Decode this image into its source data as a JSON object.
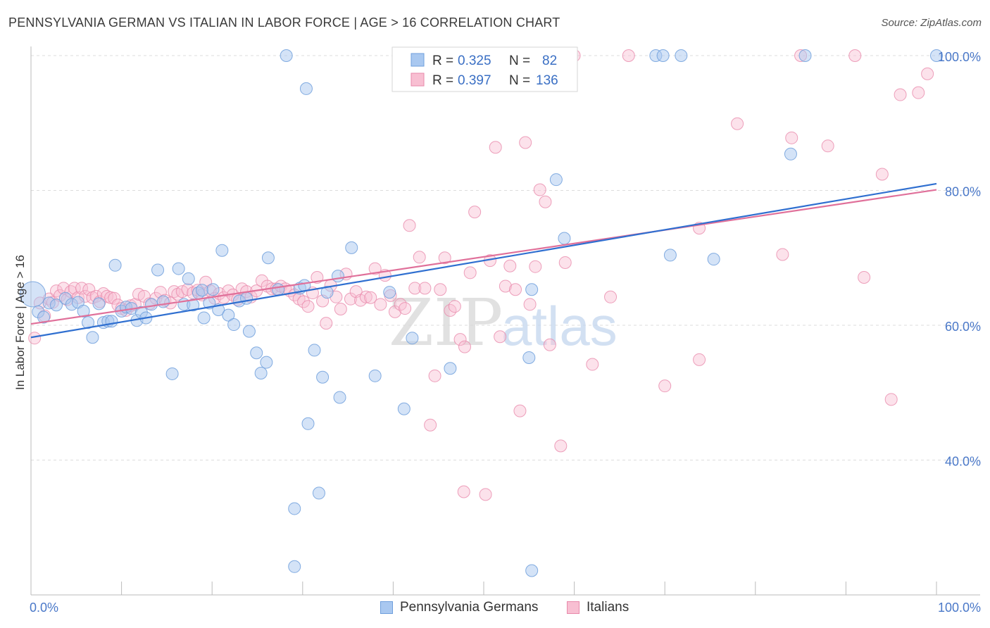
{
  "title": "PENNSYLVANIA GERMAN VS ITALIAN IN LABOR FORCE | AGE > 16 CORRELATION CHART",
  "source": "Source: ZipAtlas.com",
  "watermark": {
    "zip": "ZIP",
    "atlas": "atlas"
  },
  "colors": {
    "blue_fill": "#a9c8f0",
    "blue_stroke": "#6f9fdc",
    "blue_line": "#2f6fd0",
    "pink_fill": "#f8bfd2",
    "pink_stroke": "#e88aab",
    "pink_line": "#e0709a",
    "tick_label": "#4a78c8",
    "grid": "#dddddd",
    "axis": "#bbbbbb"
  },
  "legend_top": [
    {
      "r_label": "R =",
      "r_value": "0.325",
      "n_label": "N =",
      "n_value": "82"
    },
    {
      "r_label": "R =",
      "r_value": "0.397",
      "n_label": "N =",
      "n_value": "136"
    }
  ],
  "legend_bottom": [
    "Pennsylvania Germans",
    "Italians"
  ],
  "chart_data": {
    "type": "scatter",
    "title": "PENNSYLVANIA GERMAN VS ITALIAN IN LABOR FORCE | AGE > 16 CORRELATION CHART",
    "xlabel": "",
    "ylabel": "In Labor Force | Age > 16",
    "xlim": [
      0,
      100
    ],
    "ylim": [
      20,
      102
    ],
    "x_tick_labels": [
      "0.0%",
      "100.0%"
    ],
    "y_ticks": [
      40,
      60,
      80,
      100
    ],
    "y_tick_labels": [
      "40.0%",
      "60.0%",
      "80.0%",
      "100.0%"
    ],
    "grid": true,
    "series": [
      {
        "name": "Pennsylvania Germans",
        "color": "#a9c8f0",
        "trend": {
          "x": [
            0,
            100
          ],
          "y": [
            58.2,
            81.0
          ]
        },
        "points": [
          {
            "x": 0.2,
            "y": 64.6,
            "big": true
          },
          {
            "x": 0.8,
            "y": 62.0
          },
          {
            "x": 1.4,
            "y": 61.2
          },
          {
            "x": 2.0,
            "y": 63.3
          },
          {
            "x": 2.8,
            "y": 63.0
          },
          {
            "x": 3.8,
            "y": 64.0
          },
          {
            "x": 4.5,
            "y": 63.1
          },
          {
            "x": 5.2,
            "y": 63.4
          },
          {
            "x": 5.8,
            "y": 62.1
          },
          {
            "x": 6.3,
            "y": 60.4
          },
          {
            "x": 6.8,
            "y": 58.2
          },
          {
            "x": 7.5,
            "y": 63.2
          },
          {
            "x": 8.0,
            "y": 60.4
          },
          {
            "x": 8.5,
            "y": 60.6
          },
          {
            "x": 8.9,
            "y": 60.6
          },
          {
            "x": 9.3,
            "y": 68.9
          },
          {
            "x": 10.0,
            "y": 62.1
          },
          {
            "x": 10.5,
            "y": 62.7
          },
          {
            "x": 11.1,
            "y": 62.5
          },
          {
            "x": 11.7,
            "y": 60.7
          },
          {
            "x": 12.2,
            "y": 61.9
          },
          {
            "x": 12.7,
            "y": 61.1
          },
          {
            "x": 13.3,
            "y": 63.1
          },
          {
            "x": 14.0,
            "y": 68.2
          },
          {
            "x": 14.6,
            "y": 63.5
          },
          {
            "x": 15.6,
            "y": 52.8
          },
          {
            "x": 16.3,
            "y": 68.4
          },
          {
            "x": 16.9,
            "y": 63.1
          },
          {
            "x": 17.4,
            "y": 66.9
          },
          {
            "x": 17.9,
            "y": 63.0
          },
          {
            "x": 18.5,
            "y": 64.8
          },
          {
            "x": 18.9,
            "y": 65.2
          },
          {
            "x": 19.1,
            "y": 61.1
          },
          {
            "x": 19.7,
            "y": 63.3
          },
          {
            "x": 20.1,
            "y": 65.3
          },
          {
            "x": 20.7,
            "y": 62.3
          },
          {
            "x": 21.1,
            "y": 71.1
          },
          {
            "x": 21.8,
            "y": 61.5
          },
          {
            "x": 22.4,
            "y": 60.1
          },
          {
            "x": 23.0,
            "y": 63.6
          },
          {
            "x": 23.8,
            "y": 64.0
          },
          {
            "x": 24.1,
            "y": 59.1
          },
          {
            "x": 24.9,
            "y": 55.9
          },
          {
            "x": 25.4,
            "y": 52.9
          },
          {
            "x": 26.0,
            "y": 54.5
          },
          {
            "x": 26.2,
            "y": 70.0
          },
          {
            "x": 27.3,
            "y": 65.3
          },
          {
            "x": 28.2,
            "y": 100.0
          },
          {
            "x": 29.1,
            "y": 32.8
          },
          {
            "x": 29.1,
            "y": 24.2
          },
          {
            "x": 29.7,
            "y": 65.5
          },
          {
            "x": 30.2,
            "y": 65.9
          },
          {
            "x": 30.4,
            "y": 95.1
          },
          {
            "x": 30.6,
            "y": 45.4
          },
          {
            "x": 31.3,
            "y": 56.3
          },
          {
            "x": 31.8,
            "y": 35.1
          },
          {
            "x": 32.2,
            "y": 52.3
          },
          {
            "x": 32.7,
            "y": 64.9
          },
          {
            "x": 33.9,
            "y": 67.3
          },
          {
            "x": 34.1,
            "y": 49.3
          },
          {
            "x": 35.4,
            "y": 71.5
          },
          {
            "x": 38.0,
            "y": 52.5
          },
          {
            "x": 39.6,
            "y": 64.9
          },
          {
            "x": 41.2,
            "y": 47.6
          },
          {
            "x": 41.4,
            "y": 100.0
          },
          {
            "x": 42.1,
            "y": 58.1
          },
          {
            "x": 46.3,
            "y": 53.6
          },
          {
            "x": 47.0,
            "y": 95.9
          },
          {
            "x": 49.3,
            "y": 100.0
          },
          {
            "x": 55.0,
            "y": 55.2
          },
          {
            "x": 55.3,
            "y": 65.3
          },
          {
            "x": 55.3,
            "y": 23.6
          },
          {
            "x": 58.0,
            "y": 81.6
          },
          {
            "x": 58.9,
            "y": 72.9
          },
          {
            "x": 70.6,
            "y": 70.4
          },
          {
            "x": 69.0,
            "y": 100.0
          },
          {
            "x": 69.8,
            "y": 100.0
          },
          {
            "x": 71.8,
            "y": 100.0
          },
          {
            "x": 75.4,
            "y": 69.8
          },
          {
            "x": 83.9,
            "y": 85.4
          },
          {
            "x": 85.5,
            "y": 100.0
          },
          {
            "x": 100.0,
            "y": 100.0
          }
        ]
      },
      {
        "name": "Italians",
        "color": "#f8bfd2",
        "trend": {
          "x": [
            0,
            100
          ],
          "y": [
            60.2,
            80.1
          ]
        },
        "points": [
          {
            "x": 0.4,
            "y": 58.1
          },
          {
            "x": 1.0,
            "y": 63.3
          },
          {
            "x": 1.5,
            "y": 61.4
          },
          {
            "x": 2.0,
            "y": 63.9
          },
          {
            "x": 2.4,
            "y": 63.4
          },
          {
            "x": 2.8,
            "y": 65.1
          },
          {
            "x": 3.2,
            "y": 64.4
          },
          {
            "x": 3.6,
            "y": 65.5
          },
          {
            "x": 4.0,
            "y": 63.8
          },
          {
            "x": 4.4,
            "y": 65.0
          },
          {
            "x": 4.8,
            "y": 65.5
          },
          {
            "x": 5.2,
            "y": 64.1
          },
          {
            "x": 5.6,
            "y": 65.5
          },
          {
            "x": 6.0,
            "y": 64.3
          },
          {
            "x": 6.4,
            "y": 65.3
          },
          {
            "x": 6.8,
            "y": 64.1
          },
          {
            "x": 7.2,
            "y": 64.3
          },
          {
            "x": 7.6,
            "y": 63.5
          },
          {
            "x": 8.0,
            "y": 64.7
          },
          {
            "x": 8.4,
            "y": 64.3
          },
          {
            "x": 8.8,
            "y": 64.1
          },
          {
            "x": 9.2,
            "y": 64.0
          },
          {
            "x": 9.6,
            "y": 63.0
          },
          {
            "x": 10.0,
            "y": 62.5
          },
          {
            "x": 10.5,
            "y": 62.2
          },
          {
            "x": 11.0,
            "y": 62.9
          },
          {
            "x": 11.5,
            "y": 63.1
          },
          {
            "x": 11.9,
            "y": 64.6
          },
          {
            "x": 12.5,
            "y": 64.3
          },
          {
            "x": 13.1,
            "y": 63.2
          },
          {
            "x": 13.8,
            "y": 64.0
          },
          {
            "x": 14.3,
            "y": 64.9
          },
          {
            "x": 14.8,
            "y": 63.7
          },
          {
            "x": 15.4,
            "y": 63.3
          },
          {
            "x": 15.8,
            "y": 65.0
          },
          {
            "x": 16.2,
            "y": 64.6
          },
          {
            "x": 16.7,
            "y": 65.0
          },
          {
            "x": 17.3,
            "y": 65.3
          },
          {
            "x": 17.9,
            "y": 64.8
          },
          {
            "x": 18.4,
            "y": 65.2
          },
          {
            "x": 18.9,
            "y": 64.5
          },
          {
            "x": 19.3,
            "y": 66.4
          },
          {
            "x": 19.8,
            "y": 65.1
          },
          {
            "x": 20.3,
            "y": 64.0
          },
          {
            "x": 20.8,
            "y": 64.7
          },
          {
            "x": 21.3,
            "y": 64.1
          },
          {
            "x": 21.8,
            "y": 65.1
          },
          {
            "x": 22.3,
            "y": 64.5
          },
          {
            "x": 22.8,
            "y": 63.8
          },
          {
            "x": 23.3,
            "y": 65.4
          },
          {
            "x": 23.8,
            "y": 65.0
          },
          {
            "x": 24.3,
            "y": 64.2
          },
          {
            "x": 24.9,
            "y": 65.1
          },
          {
            "x": 25.5,
            "y": 66.6
          },
          {
            "x": 26.1,
            "y": 65.8
          },
          {
            "x": 26.6,
            "y": 65.4
          },
          {
            "x": 27.1,
            "y": 65.4
          },
          {
            "x": 27.6,
            "y": 65.8
          },
          {
            "x": 28.1,
            "y": 65.4
          },
          {
            "x": 28.6,
            "y": 65.1
          },
          {
            "x": 29.1,
            "y": 64.5
          },
          {
            "x": 29.6,
            "y": 63.9
          },
          {
            "x": 30.1,
            "y": 63.5
          },
          {
            "x": 30.6,
            "y": 62.8
          },
          {
            "x": 31.1,
            "y": 64.8
          },
          {
            "x": 31.6,
            "y": 67.1
          },
          {
            "x": 32.2,
            "y": 63.6
          },
          {
            "x": 32.6,
            "y": 60.3
          },
          {
            "x": 33.1,
            "y": 65.9
          },
          {
            "x": 33.7,
            "y": 64.2
          },
          {
            "x": 34.2,
            "y": 62.4
          },
          {
            "x": 34.8,
            "y": 67.6
          },
          {
            "x": 35.3,
            "y": 63.9
          },
          {
            "x": 35.9,
            "y": 65.0
          },
          {
            "x": 36.4,
            "y": 63.7
          },
          {
            "x": 37.0,
            "y": 64.2
          },
          {
            "x": 37.5,
            "y": 64.1
          },
          {
            "x": 38.0,
            "y": 68.4
          },
          {
            "x": 38.6,
            "y": 63.1
          },
          {
            "x": 39.1,
            "y": 67.4
          },
          {
            "x": 39.7,
            "y": 64.4
          },
          {
            "x": 40.2,
            "y": 62.0
          },
          {
            "x": 40.8,
            "y": 63.1
          },
          {
            "x": 41.3,
            "y": 62.5
          },
          {
            "x": 41.8,
            "y": 74.8
          },
          {
            "x": 42.4,
            "y": 65.5
          },
          {
            "x": 42.9,
            "y": 70.1
          },
          {
            "x": 43.5,
            "y": 65.5
          },
          {
            "x": 44.1,
            "y": 45.2
          },
          {
            "x": 44.6,
            "y": 52.5
          },
          {
            "x": 45.2,
            "y": 65.3
          },
          {
            "x": 45.7,
            "y": 70.0
          },
          {
            "x": 46.3,
            "y": 62.2
          },
          {
            "x": 46.8,
            "y": 62.8
          },
          {
            "x": 47.4,
            "y": 57.9
          },
          {
            "x": 47.9,
            "y": 56.8
          },
          {
            "x": 48.5,
            "y": 67.8
          },
          {
            "x": 49.0,
            "y": 76.8
          },
          {
            "x": 49.6,
            "y": 100.0
          },
          {
            "x": 50.2,
            "y": 34.9
          },
          {
            "x": 50.7,
            "y": 69.6
          },
          {
            "x": 51.3,
            "y": 86.4
          },
          {
            "x": 51.8,
            "y": 58.3
          },
          {
            "x": 52.4,
            "y": 65.8
          },
          {
            "x": 52.9,
            "y": 68.8
          },
          {
            "x": 53.5,
            "y": 65.3
          },
          {
            "x": 54.0,
            "y": 47.3
          },
          {
            "x": 54.6,
            "y": 87.1
          },
          {
            "x": 55.1,
            "y": 63.1
          },
          {
            "x": 55.7,
            "y": 68.7
          },
          {
            "x": 56.2,
            "y": 80.1
          },
          {
            "x": 56.8,
            "y": 78.3
          },
          {
            "x": 57.3,
            "y": 57.1
          },
          {
            "x": 57.9,
            "y": 100.0
          },
          {
            "x": 58.5,
            "y": 42.1
          },
          {
            "x": 59.0,
            "y": 69.3
          },
          {
            "x": 60.0,
            "y": 100.0
          },
          {
            "x": 64.0,
            "y": 64.2
          },
          {
            "x": 66.0,
            "y": 100.0
          },
          {
            "x": 70.0,
            "y": 51.0
          },
          {
            "x": 73.8,
            "y": 54.9
          },
          {
            "x": 73.8,
            "y": 74.4
          },
          {
            "x": 78.0,
            "y": 89.9
          },
          {
            "x": 83.0,
            "y": 70.5
          },
          {
            "x": 84.0,
            "y": 87.8
          },
          {
            "x": 85.0,
            "y": 100.0
          },
          {
            "x": 88.0,
            "y": 86.6
          },
          {
            "x": 91.0,
            "y": 100.0
          },
          {
            "x": 92.0,
            "y": 67.1
          },
          {
            "x": 94.0,
            "y": 82.4
          },
          {
            "x": 95.0,
            "y": 49.0
          },
          {
            "x": 96.0,
            "y": 94.2
          },
          {
            "x": 98.0,
            "y": 94.5
          },
          {
            "x": 99.0,
            "y": 97.3
          },
          {
            "x": 47.8,
            "y": 35.3
          },
          {
            "x": 62.0,
            "y": 54.2
          }
        ]
      }
    ]
  }
}
